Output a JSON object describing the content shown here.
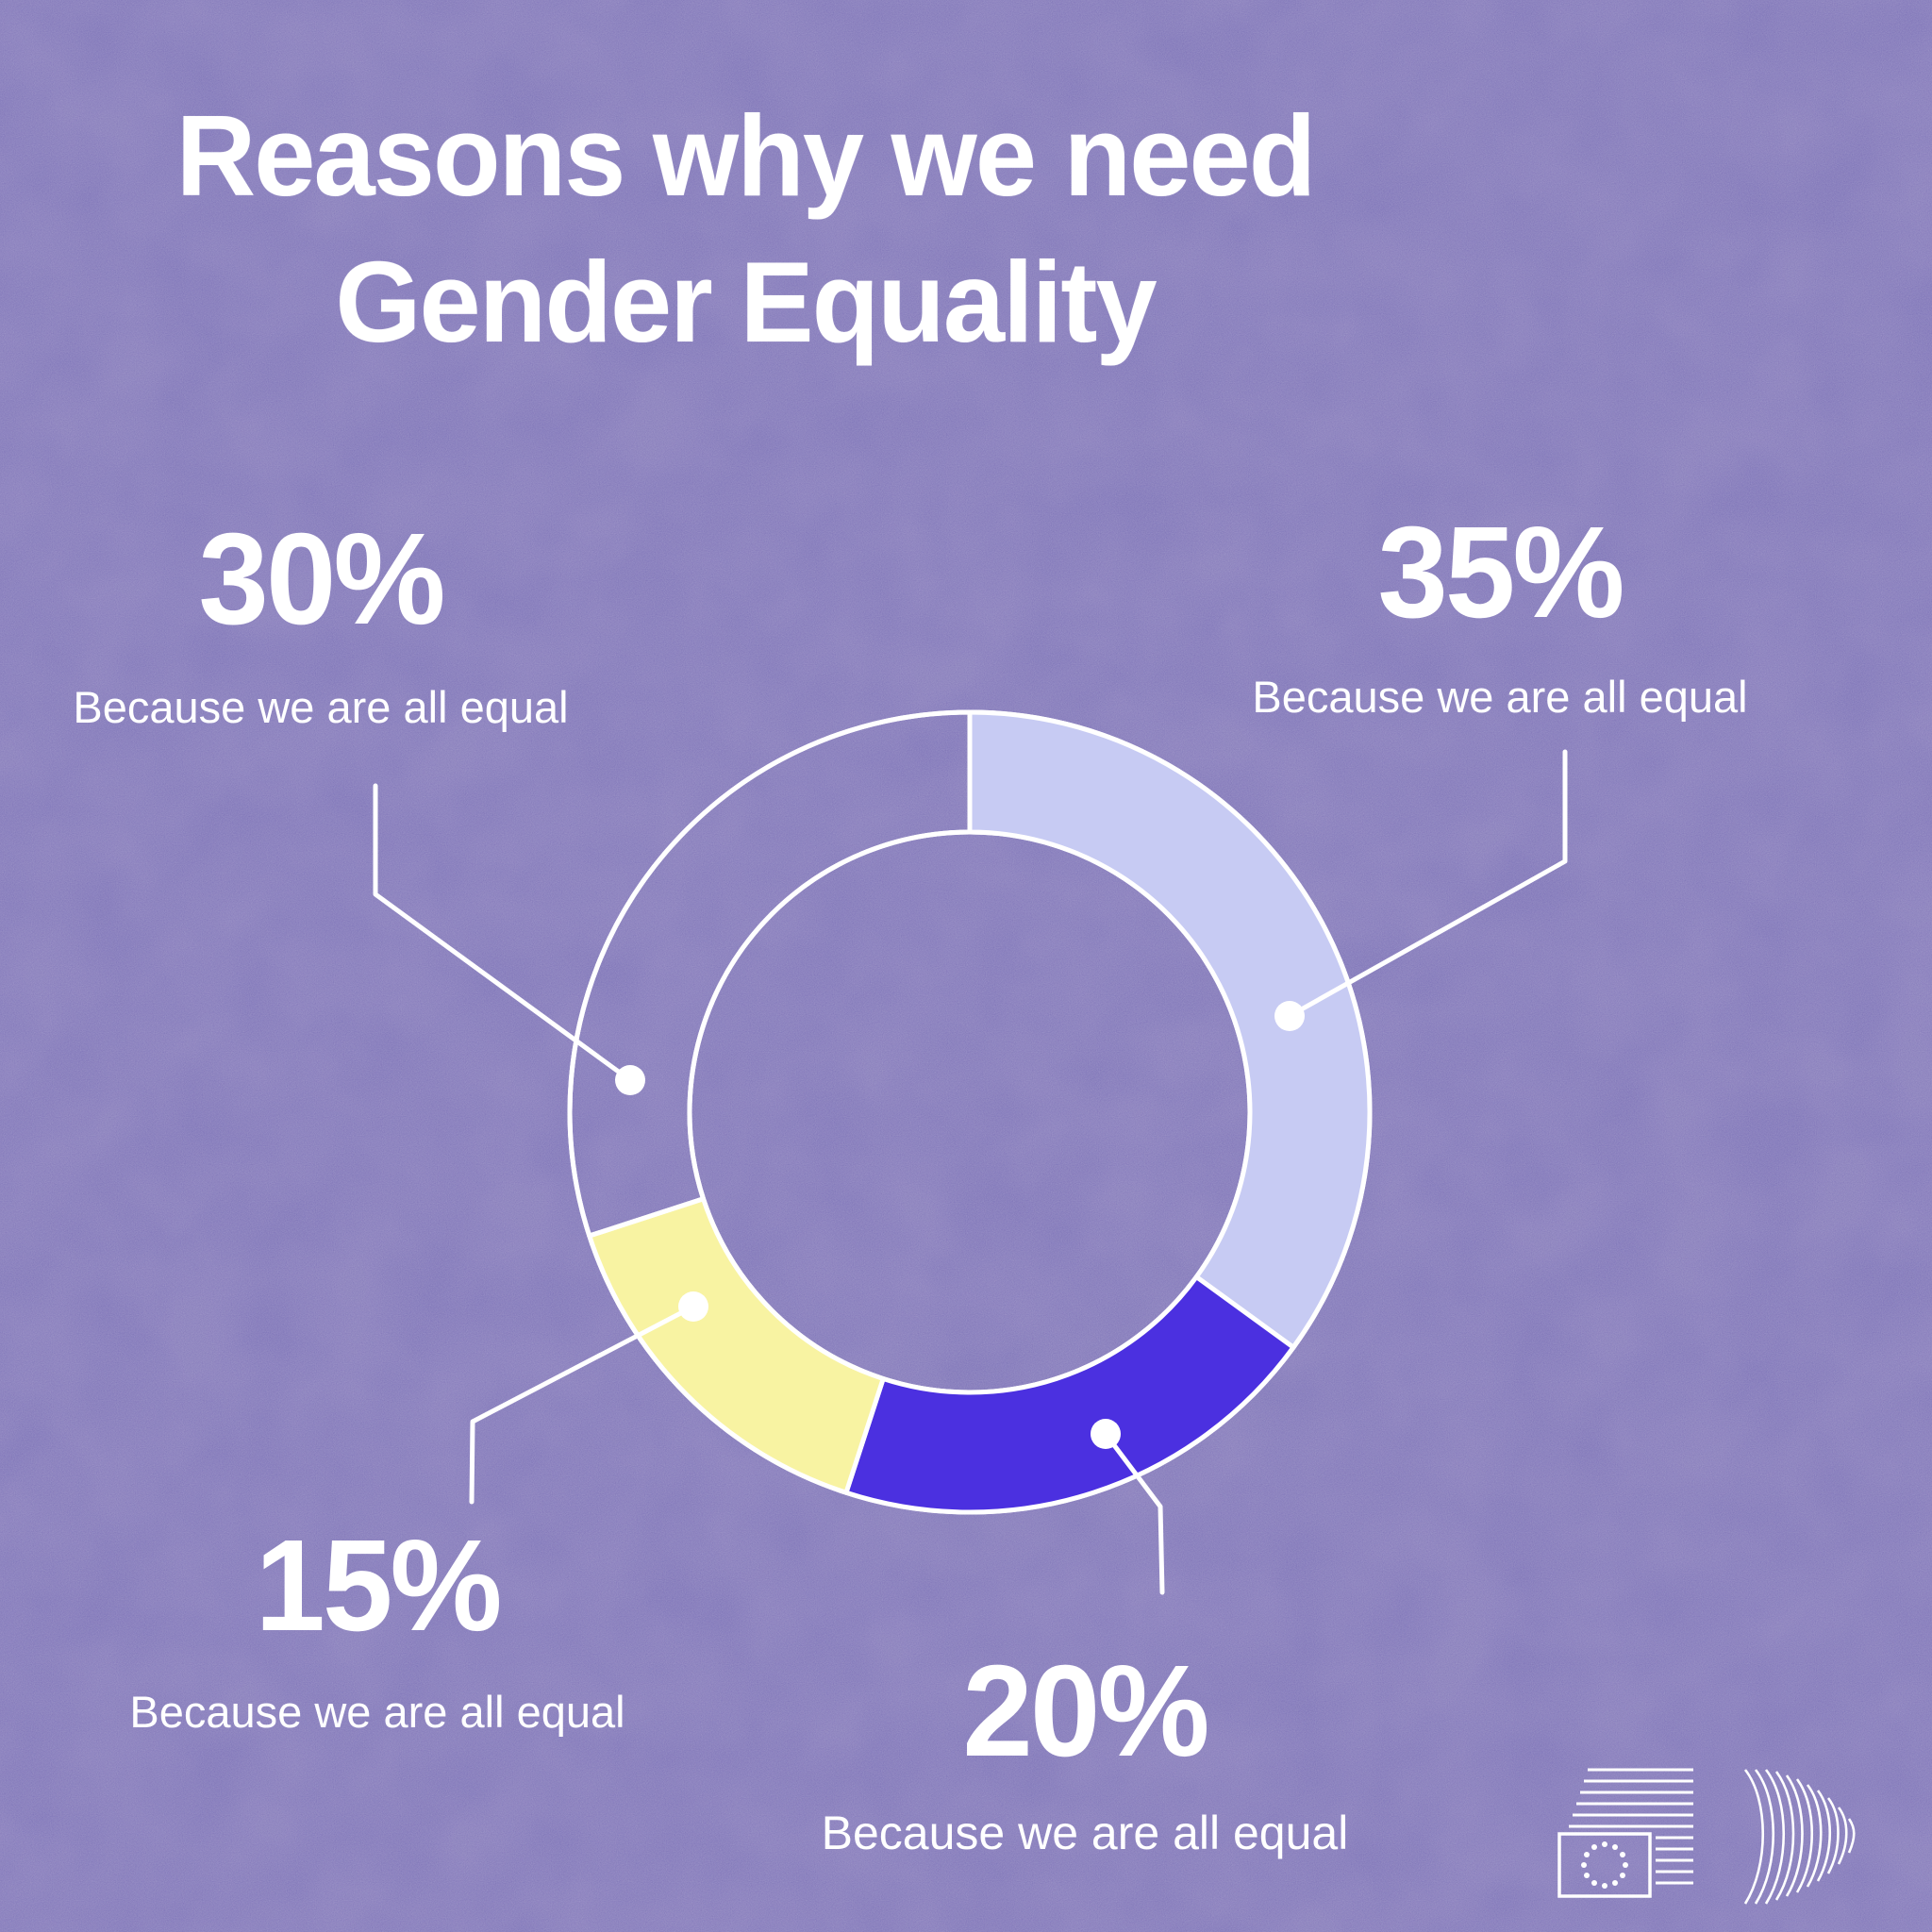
{
  "title": {
    "line1": "Reasons why we need",
    "line2": "Gender Equality"
  },
  "chart_data": {
    "type": "pie",
    "variant": "donut",
    "title": "Reasons why we need Gender Equality",
    "unit": "%",
    "start_angle_deg_from_top": 0,
    "direction": "clockwise",
    "segments": [
      {
        "value": 35,
        "value_label": "35%",
        "label": "Because we are all equal",
        "color": "#c7cbf3",
        "filled": true
      },
      {
        "value": 20,
        "value_label": "20%",
        "label": "Because we are all equal",
        "color": "#4b30e0",
        "filled": true
      },
      {
        "value": 15,
        "value_label": "15%",
        "label": "Because we are all equal",
        "color": "#f8f3a2",
        "filled": true
      },
      {
        "value": 30,
        "value_label": "30%",
        "label": "Because we are all equal",
        "color": "none",
        "filled": false
      }
    ],
    "outline_color": "#ffffff",
    "legend_position": "around-chart"
  },
  "colors": {
    "background": "#8177b9",
    "text": "#ffffff",
    "leader_lines": "#ffffff"
  },
  "icons": {
    "footer_logo_left": "european-commission-bars-flag-logo",
    "footer_logo_right": "curved-lines-flag-logo",
    "eu_flag_star_count": "12"
  }
}
